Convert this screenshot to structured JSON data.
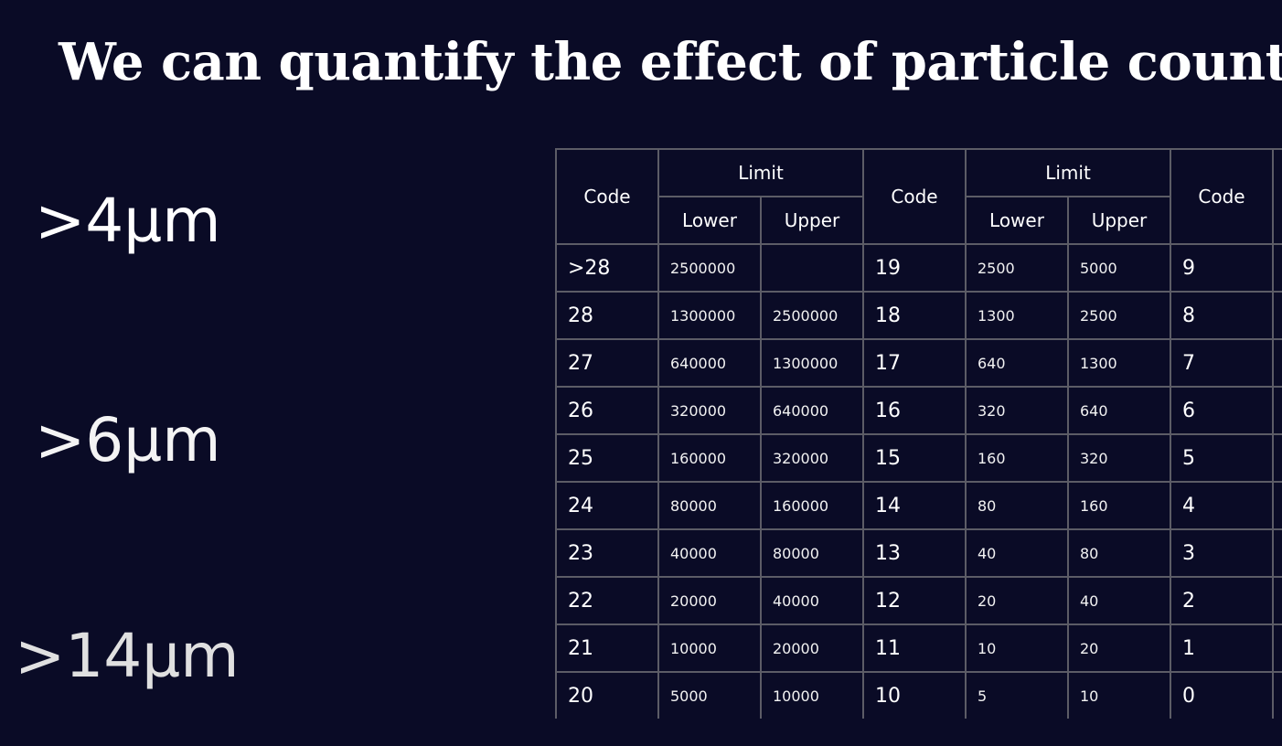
{
  "slide": {
    "title": "We can quantify the effect of particle count"
  },
  "size_labels": {
    "size_4": ">4µm",
    "size_6": ">6µm",
    "size_14": ">14µm"
  },
  "table": {
    "headers": {
      "code": "Code",
      "limit": "Limit",
      "lower": "Lower",
      "upper": "Upper"
    },
    "rows": [
      {
        "c1": ">28",
        "l1": "2500000",
        "u1": "",
        "c2": "19",
        "l2": "2500",
        "u2": "5000",
        "c3": "9"
      },
      {
        "c1": "28",
        "l1": "1300000",
        "u1": "2500000",
        "c2": "18",
        "l2": "1300",
        "u2": "2500",
        "c3": "8"
      },
      {
        "c1": "27",
        "l1": "640000",
        "u1": "1300000",
        "c2": "17",
        "l2": "640",
        "u2": "1300",
        "c3": "7"
      },
      {
        "c1": "26",
        "l1": "320000",
        "u1": "640000",
        "c2": "16",
        "l2": "320",
        "u2": "640",
        "c3": "6"
      },
      {
        "c1": "25",
        "l1": "160000",
        "u1": "320000",
        "c2": "15",
        "l2": "160",
        "u2": "320",
        "c3": "5"
      },
      {
        "c1": "24",
        "l1": "80000",
        "u1": "160000",
        "c2": "14",
        "l2": "80",
        "u2": "160",
        "c3": "4"
      },
      {
        "c1": "23",
        "l1": "40000",
        "u1": "80000",
        "c2": "13",
        "l2": "40",
        "u2": "80",
        "c3": "3"
      },
      {
        "c1": "22",
        "l1": "20000",
        "u1": "40000",
        "c2": "12",
        "l2": "20",
        "u2": "40",
        "c3": "2"
      },
      {
        "c1": "21",
        "l1": "10000",
        "u1": "20000",
        "c2": "11",
        "l2": "10",
        "u2": "20",
        "c3": "1"
      },
      {
        "c1": "20",
        "l1": "5000",
        "u1": "10000",
        "c2": "10",
        "l2": "5",
        "u2": "10",
        "c3": "0"
      }
    ]
  },
  "colors": {
    "background": "#0a0b26",
    "text": "#ffffff",
    "grid": "#5c5c66"
  }
}
